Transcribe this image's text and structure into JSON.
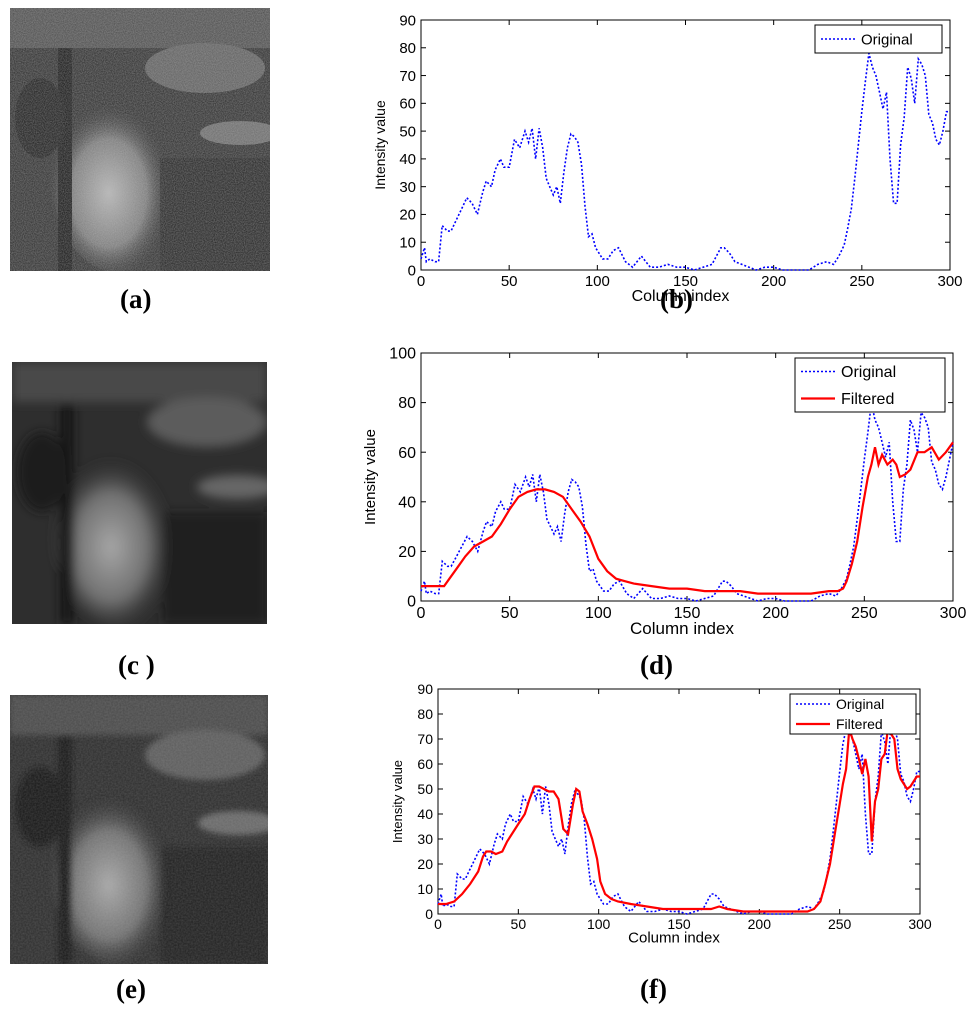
{
  "panels": {
    "a": {
      "label": "(a)"
    },
    "b": {
      "label": "(b)"
    },
    "c": {
      "label": "(c )"
    },
    "d": {
      "label": "(d)"
    },
    "e": {
      "label": "(e)"
    },
    "f": {
      "label": "(f)"
    }
  },
  "images": [
    {
      "panel": "a",
      "description_name": "original-ultrasound-image"
    },
    {
      "panel": "c",
      "description_name": "filtered-ultrasound-image-c"
    },
    {
      "panel": "e",
      "description_name": "filtered-ultrasound-image-e"
    }
  ],
  "colors": {
    "original": "#0000ff",
    "filtered": "#ff0000"
  },
  "chart_data": [
    {
      "panel": "b",
      "type": "line",
      "xlabel": "Column index",
      "ylabel": "Intensity value",
      "xlim": [
        0,
        300
      ],
      "ylim": [
        0,
        90
      ],
      "xticks": [
        0,
        50,
        100,
        150,
        200,
        250,
        300
      ],
      "yticks": [
        0,
        10,
        20,
        30,
        40,
        50,
        60,
        70,
        80,
        90
      ],
      "legend": "top-right",
      "series": [
        {
          "name": "Original",
          "style": "dotted",
          "color": "#0000ff",
          "x": [
            0,
            2,
            3,
            5,
            8,
            10,
            12,
            15,
            17,
            20,
            23,
            26,
            29,
            32,
            35,
            37,
            40,
            42,
            45,
            47,
            50,
            53,
            56,
            59,
            61,
            63,
            65,
            67,
            69,
            71,
            73,
            75,
            77,
            79,
            81,
            83,
            85,
            87,
            89,
            91,
            93,
            95,
            97,
            99,
            101,
            103,
            106,
            109,
            112,
            116,
            120,
            125,
            130,
            135,
            140,
            145,
            150,
            155,
            160,
            165,
            170,
            172,
            175,
            178,
            182,
            186,
            190,
            195,
            200,
            205,
            210,
            215,
            220,
            225,
            230,
            234,
            237,
            240,
            242,
            244,
            246,
            248,
            250,
            252,
            254,
            256,
            258,
            260,
            262,
            264,
            266,
            268,
            270,
            272,
            274,
            276,
            278,
            280,
            282,
            284,
            286,
            288,
            290,
            292,
            294,
            296,
            298,
            300
          ],
          "y": [
            4,
            8,
            3,
            4,
            3,
            3,
            16,
            14,
            14,
            18,
            22,
            26,
            24,
            20,
            28,
            32,
            30,
            36,
            40,
            37,
            37,
            47,
            44,
            50,
            46,
            51,
            40,
            51,
            44,
            33,
            30,
            27,
            30,
            24,
            35,
            44,
            49,
            48,
            46,
            38,
            23,
            12,
            13,
            8,
            6,
            4,
            4,
            7,
            8,
            3,
            1,
            5,
            1,
            1,
            2,
            1,
            1,
            0,
            1,
            2,
            8,
            8,
            6,
            3,
            2,
            1,
            0,
            1,
            1,
            0,
            0,
            0,
            0,
            2,
            3,
            2,
            5,
            9,
            15,
            22,
            33,
            45,
            57,
            68,
            78,
            73,
            70,
            64,
            58,
            64,
            40,
            24,
            24,
            45,
            55,
            73,
            69,
            60,
            76,
            74,
            70,
            56,
            53,
            47,
            45,
            50,
            57,
            57
          ]
        }
      ]
    },
    {
      "panel": "d",
      "type": "line",
      "xlabel": "Column index",
      "ylabel": "Intensity value",
      "xlim": [
        0,
        300
      ],
      "ylim": [
        0,
        100
      ],
      "xticks": [
        0,
        50,
        100,
        150,
        200,
        250,
        300
      ],
      "yticks": [
        0,
        20,
        40,
        60,
        80,
        100
      ],
      "legend": "top-right",
      "series": [
        {
          "name": "Original",
          "style": "dotted",
          "color": "#0000ff",
          "x": [
            0,
            2,
            3,
            5,
            8,
            10,
            12,
            15,
            17,
            20,
            23,
            26,
            29,
            32,
            35,
            37,
            40,
            42,
            45,
            47,
            50,
            53,
            56,
            59,
            61,
            63,
            65,
            67,
            69,
            71,
            73,
            75,
            77,
            79,
            81,
            83,
            85,
            87,
            89,
            91,
            93,
            95,
            97,
            99,
            101,
            103,
            106,
            109,
            112,
            116,
            120,
            125,
            130,
            135,
            140,
            145,
            150,
            155,
            160,
            165,
            170,
            172,
            175,
            178,
            182,
            186,
            190,
            195,
            200,
            205,
            210,
            215,
            220,
            225,
            230,
            234,
            237,
            240,
            242,
            244,
            246,
            248,
            250,
            252,
            254,
            256,
            258,
            260,
            262,
            264,
            266,
            268,
            270,
            272,
            274,
            276,
            278,
            280,
            282,
            284,
            286,
            288,
            290,
            292,
            294,
            296,
            298,
            300
          ],
          "y": [
            4,
            8,
            3,
            4,
            3,
            3,
            16,
            14,
            14,
            18,
            22,
            26,
            24,
            20,
            28,
            32,
            30,
            36,
            40,
            37,
            37,
            47,
            44,
            50,
            46,
            51,
            40,
            51,
            44,
            33,
            30,
            27,
            30,
            24,
            35,
            44,
            49,
            48,
            46,
            38,
            23,
            12,
            13,
            8,
            6,
            4,
            4,
            7,
            8,
            3,
            1,
            5,
            1,
            1,
            2,
            1,
            1,
            0,
            1,
            2,
            8,
            8,
            6,
            3,
            2,
            1,
            0,
            1,
            1,
            0,
            0,
            0,
            0,
            2,
            3,
            2,
            5,
            9,
            15,
            22,
            33,
            45,
            57,
            68,
            80,
            73,
            70,
            64,
            58,
            64,
            40,
            24,
            24,
            45,
            55,
            73,
            69,
            60,
            76,
            74,
            70,
            56,
            53,
            47,
            45,
            50,
            57,
            64
          ]
        },
        {
          "name": "Filtered",
          "style": "solid",
          "color": "#ff0000",
          "x": [
            0,
            5,
            10,
            13,
            16,
            20,
            25,
            30,
            35,
            40,
            45,
            50,
            55,
            60,
            65,
            70,
            75,
            80,
            85,
            90,
            95,
            100,
            105,
            110,
            115,
            120,
            130,
            140,
            150,
            160,
            170,
            180,
            190,
            200,
            210,
            220,
            230,
            235,
            238,
            240,
            243,
            246,
            249,
            252,
            254,
            256,
            258,
            260,
            263,
            266,
            268,
            270,
            273,
            276,
            280,
            284,
            288,
            292,
            296,
            300
          ],
          "y": [
            6,
            6,
            6,
            6,
            9,
            13,
            18,
            22,
            24,
            26,
            31,
            37,
            42,
            44,
            45,
            45,
            44,
            42,
            37,
            32,
            26,
            17,
            12,
            9,
            8,
            7,
            6,
            5,
            5,
            4,
            4,
            4,
            3,
            3,
            3,
            3,
            4,
            4,
            5,
            8,
            15,
            24,
            38,
            50,
            55,
            62,
            55,
            59,
            55,
            57,
            55,
            50,
            51,
            53,
            60,
            60,
            62,
            57,
            60,
            64
          ]
        }
      ]
    },
    {
      "panel": "f",
      "type": "line",
      "xlabel": "Column index",
      "ylabel": "Intensity value",
      "xlim": [
        0,
        300
      ],
      "ylim": [
        0,
        90
      ],
      "xticks": [
        0,
        50,
        100,
        150,
        200,
        250,
        300
      ],
      "yticks": [
        0,
        10,
        20,
        30,
        40,
        50,
        60,
        70,
        80,
        90
      ],
      "legend": "top-right",
      "series": [
        {
          "name": "Original",
          "style": "dotted",
          "color": "#0000ff",
          "x": [
            0,
            2,
            3,
            5,
            8,
            10,
            12,
            15,
            17,
            20,
            23,
            26,
            29,
            32,
            35,
            37,
            40,
            42,
            45,
            47,
            50,
            53,
            56,
            59,
            61,
            63,
            65,
            67,
            69,
            71,
            73,
            75,
            77,
            79,
            81,
            83,
            85,
            87,
            89,
            91,
            93,
            95,
            97,
            99,
            101,
            103,
            106,
            109,
            112,
            116,
            120,
            125,
            130,
            135,
            140,
            145,
            150,
            155,
            160,
            165,
            170,
            172,
            175,
            178,
            182,
            186,
            190,
            195,
            200,
            205,
            210,
            215,
            220,
            225,
            230,
            234,
            237,
            240,
            242,
            244,
            246,
            248,
            250,
            252,
            254,
            256,
            258,
            260,
            262,
            264,
            266,
            268,
            270,
            272,
            274,
            276,
            278,
            280,
            282,
            284,
            286,
            288,
            290,
            292,
            294,
            296,
            298,
            300
          ],
          "y": [
            4,
            8,
            3,
            4,
            3,
            3,
            16,
            14,
            14,
            18,
            22,
            26,
            24,
            20,
            28,
            32,
            30,
            36,
            40,
            37,
            37,
            47,
            44,
            50,
            46,
            51,
            40,
            51,
            44,
            33,
            30,
            27,
            30,
            24,
            35,
            44,
            49,
            48,
            46,
            38,
            23,
            12,
            13,
            8,
            6,
            4,
            4,
            7,
            8,
            3,
            1,
            5,
            1,
            1,
            2,
            1,
            1,
            0,
            1,
            2,
            8,
            8,
            6,
            3,
            2,
            1,
            0,
            1,
            1,
            0,
            0,
            0,
            0,
            2,
            3,
            2,
            5,
            9,
            15,
            22,
            33,
            45,
            57,
            68,
            74,
            73,
            70,
            64,
            58,
            64,
            40,
            24,
            24,
            45,
            55,
            73,
            69,
            60,
            76,
            74,
            70,
            56,
            53,
            47,
            45,
            50,
            57,
            57
          ]
        },
        {
          "name": "Filtered",
          "style": "solid",
          "color": "#ff0000",
          "x": [
            0,
            5,
            10,
            15,
            20,
            25,
            28,
            30,
            33,
            36,
            40,
            43,
            46,
            50,
            54,
            57,
            60,
            63,
            66,
            69,
            72,
            75,
            78,
            81,
            84,
            86,
            88,
            90,
            93,
            96,
            99,
            101,
            104,
            108,
            112,
            120,
            130,
            140,
            150,
            160,
            170,
            175,
            180,
            190,
            200,
            210,
            220,
            230,
            234,
            238,
            241,
            244,
            247,
            250,
            252,
            254,
            256,
            258,
            260,
            262,
            264,
            266,
            268,
            270,
            272,
            274,
            276,
            278,
            280,
            282,
            284,
            286,
            288,
            290,
            292,
            294,
            296,
            298,
            300
          ],
          "y": [
            4,
            4,
            5,
            8,
            12,
            17,
            23,
            25,
            25,
            24,
            25,
            29,
            32,
            36,
            40,
            46,
            51,
            51,
            50,
            49,
            49,
            46,
            34,
            32,
            44,
            50,
            49,
            41,
            36,
            30,
            22,
            13,
            8,
            6,
            5,
            4,
            3,
            2,
            2,
            2,
            2,
            3,
            2,
            1,
            1,
            1,
            1,
            1,
            2,
            5,
            12,
            20,
            32,
            44,
            52,
            58,
            74,
            70,
            67,
            62,
            56,
            62,
            55,
            29,
            45,
            50,
            62,
            64,
            74,
            72,
            70,
            58,
            54,
            52,
            50,
            51,
            53,
            55,
            55
          ]
        }
      ]
    }
  ]
}
